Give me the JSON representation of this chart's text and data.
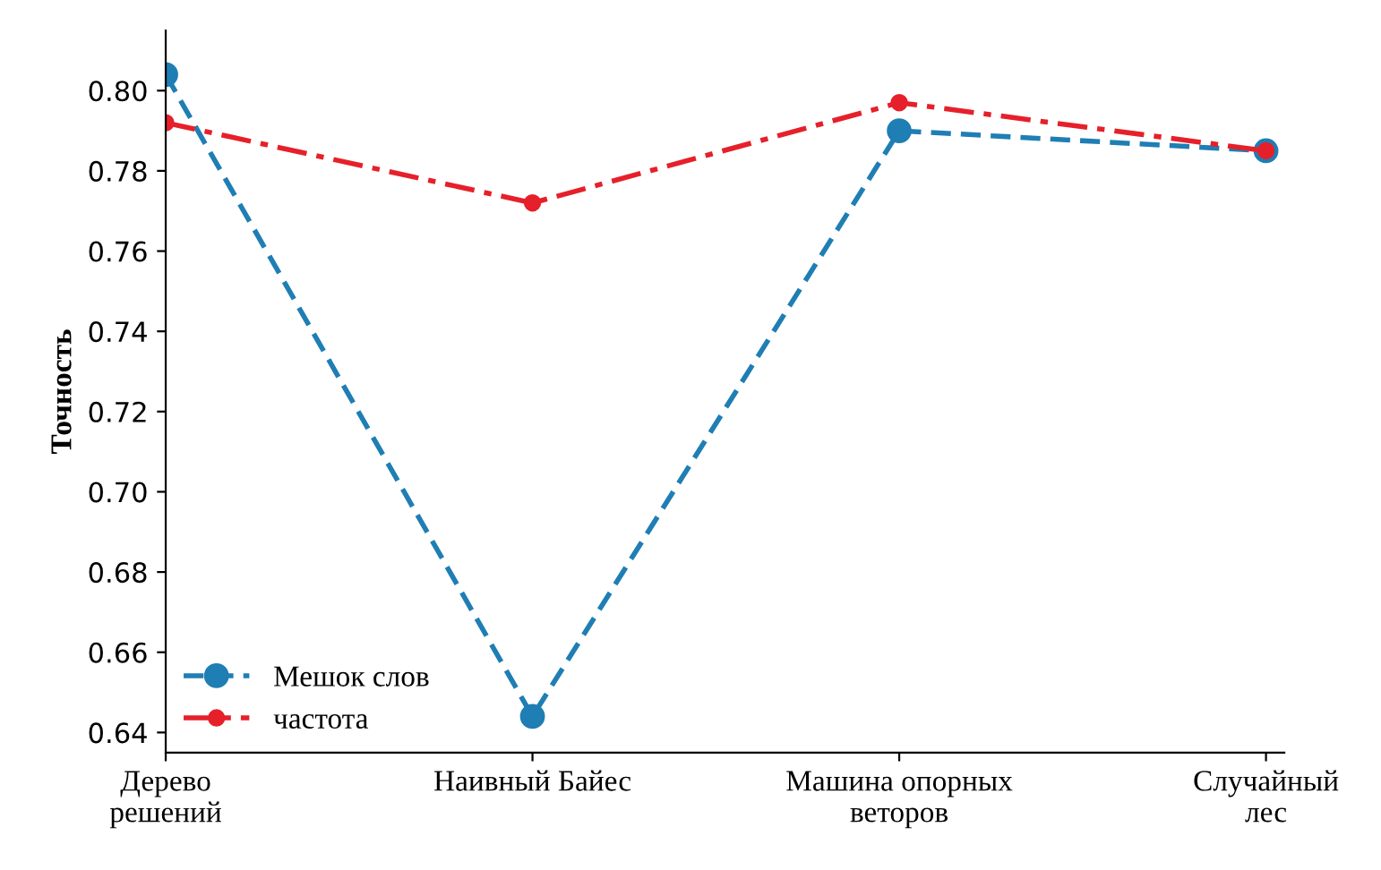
{
  "chart_data": {
    "type": "line",
    "ylabel": "Точность",
    "categories": [
      "Дерево\nрешений",
      "Наивный Байес",
      "Машина опорных\nветоров",
      "Случайный\nлес"
    ],
    "series": [
      {
        "name": "Мешок слов",
        "color": "#1f7eb4",
        "values": [
          0.804,
          0.644,
          0.79,
          0.785
        ],
        "line_style": "dashed",
        "marker": "circle"
      },
      {
        "name": "частота",
        "color": "#e6202a",
        "values": [
          0.792,
          0.772,
          0.797,
          0.785
        ],
        "line_style": "dashdot",
        "marker": "circle"
      }
    ],
    "ylim": [
      0.635,
      0.815
    ],
    "yticks": [
      {
        "value": 0.64,
        "label": "0.64"
      },
      {
        "value": 0.66,
        "label": "0.66"
      },
      {
        "value": 0.68,
        "label": "0.68"
      },
      {
        "value": 0.7,
        "label": "0.70"
      },
      {
        "value": 0.72,
        "label": "0.72"
      },
      {
        "value": 0.74,
        "label": "0.74"
      },
      {
        "value": 0.76,
        "label": "0.76"
      },
      {
        "value": 0.78,
        "label": "0.78"
      },
      {
        "value": 0.8,
        "label": "0.80"
      }
    ],
    "grid": false,
    "legend": "bottom left"
  }
}
